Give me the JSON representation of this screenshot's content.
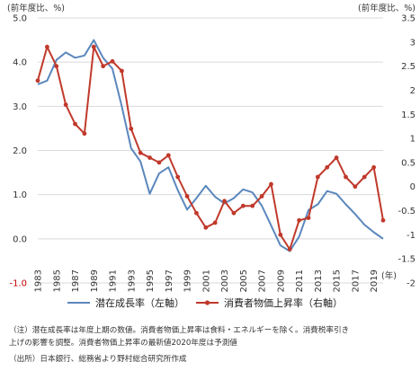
{
  "chart_data": {
    "type": "line",
    "y_left_unit": "(前年度比、%)",
    "y_right_unit": "(前年度比、%)",
    "x_unit": "(年)",
    "x_tick_labels": [
      "1983",
      "1985",
      "1987",
      "1989",
      "1991",
      "1993",
      "1995",
      "1997",
      "1999",
      "2001",
      "2003",
      "2005",
      "2007",
      "2009",
      "2011",
      "2013",
      "2015",
      "2017",
      "2019"
    ],
    "y_left_ticks": [
      "5.0",
      "4.0",
      "3.0",
      "2.0",
      "1.0",
      "0.0",
      "-1.0"
    ],
    "y_right_ticks": [
      "3.5",
      "3",
      "2.5",
      "2",
      "1.5",
      "1",
      "0.5",
      "0",
      "-0.5",
      "-1",
      "-1.5",
      "-2"
    ],
    "ylim_left": [
      -1.0,
      5.0
    ],
    "ylim_right": [
      -2.0,
      3.5
    ],
    "x": [
      1983,
      1984,
      1985,
      1986,
      1987,
      1988,
      1989,
      1990,
      1991,
      1992,
      1993,
      1994,
      1995,
      1996,
      1997,
      1998,
      1999,
      2000,
      2001,
      2002,
      2003,
      2004,
      2005,
      2006,
      2007,
      2008,
      2009,
      2010,
      2011,
      2012,
      2013,
      2014,
      2015,
      2016,
      2017,
      2018,
      2019,
      2020
    ],
    "series": [
      {
        "name": "潜在成長率（左軸）",
        "axis": "left",
        "color": "#5b87bd",
        "values": [
          3.5,
          3.58,
          4.05,
          4.22,
          4.1,
          4.15,
          4.5,
          4.1,
          3.85,
          3.0,
          2.05,
          1.75,
          1.02,
          1.48,
          1.62,
          1.1,
          0.66,
          0.92,
          1.2,
          0.95,
          0.8,
          0.92,
          1.12,
          1.05,
          0.75,
          0.3,
          -0.15,
          -0.28,
          0.05,
          0.65,
          0.78,
          1.08,
          1.02,
          0.78,
          0.56,
          0.32,
          0.15,
          0.0
        ]
      },
      {
        "name": "消費者物価上昇率（右軸）",
        "axis": "right",
        "color": "#c0392b",
        "values": [
          2.2,
          2.9,
          2.5,
          1.7,
          1.3,
          1.1,
          2.9,
          2.5,
          2.6,
          2.4,
          1.2,
          0.7,
          0.6,
          0.5,
          0.65,
          0.2,
          -0.2,
          -0.55,
          -0.85,
          -0.75,
          -0.3,
          -0.55,
          -0.4,
          -0.4,
          -0.2,
          0.05,
          -1.0,
          -1.3,
          -0.7,
          -0.65,
          0.2,
          0.4,
          0.6,
          0.2,
          0.0,
          0.2,
          0.4,
          -0.7
        ]
      }
    ]
  },
  "notes": {
    "line1": "（注）潜在成長率は年度上期の数値。消費者物価上昇率は食料・エネルギーを除く。消費税率引き",
    "line2": "上げの影響を調整。消費者物価上昇率の最新値2020年度は予測値",
    "line3": "（出所）日本銀行、総務省より野村総合研究所作成"
  }
}
